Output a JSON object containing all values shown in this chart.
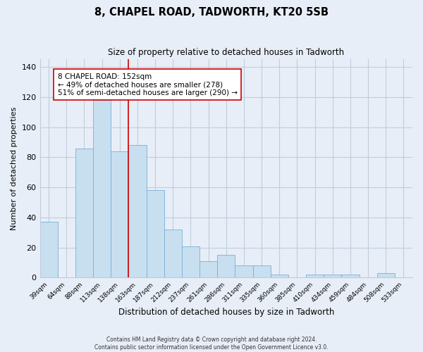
{
  "title": "8, CHAPEL ROAD, TADWORTH, KT20 5SB",
  "subtitle": "Size of property relative to detached houses in Tadworth",
  "xlabel": "Distribution of detached houses by size in Tadworth",
  "ylabel": "Number of detached properties",
  "bar_labels": [
    "39sqm",
    "64sqm",
    "88sqm",
    "113sqm",
    "138sqm",
    "163sqm",
    "187sqm",
    "212sqm",
    "237sqm",
    "261sqm",
    "286sqm",
    "311sqm",
    "335sqm",
    "360sqm",
    "385sqm",
    "410sqm",
    "434sqm",
    "459sqm",
    "484sqm",
    "508sqm",
    "533sqm"
  ],
  "bar_heights": [
    37,
    0,
    86,
    118,
    84,
    88,
    58,
    32,
    21,
    11,
    15,
    8,
    8,
    2,
    0,
    2,
    2,
    2,
    0,
    3,
    0
  ],
  "bar_color": "#c8dff0",
  "bar_edge_color": "#7aafd4",
  "vline_x_idx": 5,
  "vline_color": "#cc0000",
  "annotation_text": "8 CHAPEL ROAD: 152sqm\n← 49% of detached houses are smaller (278)\n51% of semi-detached houses are larger (290) →",
  "annotation_box_color": "#ffffff",
  "annotation_box_edge": "#cc0000",
  "ylim": [
    0,
    145
  ],
  "yticks": [
    0,
    20,
    40,
    60,
    80,
    100,
    120,
    140
  ],
  "footer_line1": "Contains HM Land Registry data © Crown copyright and database right 2024.",
  "footer_line2": "Contains public sector information licensed under the Open Government Licence v3.0.",
  "background_color": "#e8eef8",
  "plot_background": "#e8eef8",
  "grid_color": "#c0ccdd"
}
